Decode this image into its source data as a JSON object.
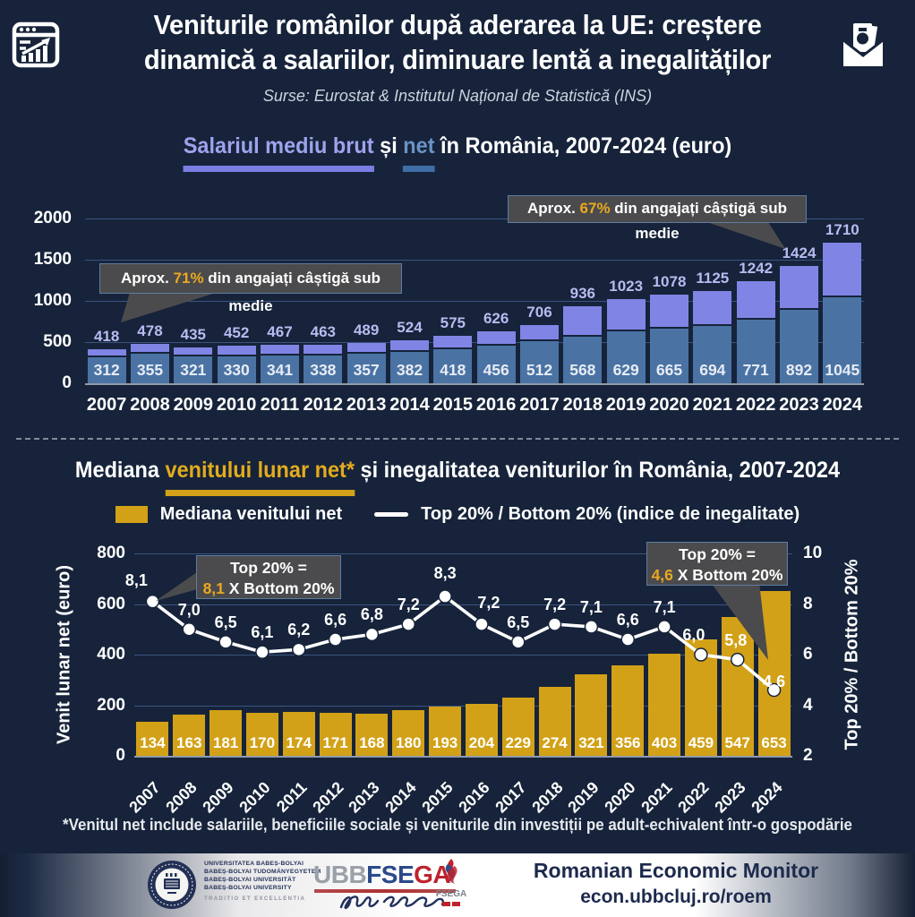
{
  "header": {
    "title_line1": "Veniturile românilor după aderarea la UE: creștere",
    "title_line2": "dinamică a salariilor, diminuare lentă a inegalităților",
    "subtitle": "Surse: Eurostat & Institutul Național de Statistică (INS)"
  },
  "section1": {
    "title_brut": "Salariul mediu brut",
    "title_si": " și ",
    "title_net": "net",
    "title_rest": " în România, 2007-2024 (euro)",
    "callout_left": {
      "prefix": "Aprox. ",
      "value": "71%",
      "suffix": " din angajați câștigă sub medie"
    },
    "callout_right": {
      "prefix": "Aprox. ",
      "value": "67%",
      "suffix": " din angajați câștigă sub medie"
    }
  },
  "section2": {
    "title_p1": "Mediana ",
    "title_gold": "venitului lunar net*",
    "title_p2": " și inegalitatea veniturilor în România, 2007-2024",
    "legend_bar": "Mediana venitului net",
    "legend_line": "Top 20% / Bottom 20% (indice de inegalitate)",
    "ylabel_left": "Venit lunar net (euro)",
    "ylabel_right": "Top 20% / Bottom 20%",
    "callout_left": {
      "line1": "Top 20% =",
      "value": "8,1",
      "rest": " X Bottom 20%"
    },
    "callout_right": {
      "line1": "Top 20% =",
      "value": "4,6",
      "rest": " X Bottom 20%"
    }
  },
  "footnote": "*Venitul net include salariile, beneficiile sociale și veniturile din investiții pe adult-echivalent într-o gospodărie",
  "footer": {
    "university_lines": [
      "UNIVERSITATEA BABEȘ-BOLYAI",
      "BABEȘ-BOLYAI TUDOMÁNYEGYETEM",
      "BABEȘ-BOLYAI UNIVERSITÄT",
      "BABEȘ-BOLYAI UNIVERSITY"
    ],
    "university_motto": "TRADITIO ET EXCELLENTIA",
    "logo_ubb": "UBB",
    "logo_fse": "FSE",
    "logo_ga": "GA",
    "emblem_text": "FSEGA",
    "brand_title": "Romanian Economic Monitor",
    "brand_url": "econ.ubbcluj.ro/roem"
  },
  "colors": {
    "background": "#16233a",
    "gross_bar": "#8084e4",
    "net_bar": "#4a73a4",
    "gold_bar": "#d2a117",
    "line": "#ffffff",
    "gold_accent": "#eaa821",
    "gridline": "#3a5480",
    "callout_bg": "#4b4b4d"
  },
  "chart_data": [
    {
      "type": "bar",
      "title": "Salariul mediu brut și net în România, 2007-2024 (euro)",
      "categories": [
        2007,
        2008,
        2009,
        2010,
        2011,
        2012,
        2013,
        2014,
        2015,
        2016,
        2017,
        2018,
        2019,
        2020,
        2021,
        2022,
        2023,
        2024
      ],
      "series": [
        {
          "name": "Salariul mediu brut",
          "color": "#8084e4",
          "values": [
            418,
            478,
            435,
            452,
            467,
            463,
            489,
            524,
            575,
            626,
            706,
            936,
            1023,
            1078,
            1125,
            1242,
            1424,
            1710
          ]
        },
        {
          "name": "Salariul mediu net",
          "color": "#4a73a4",
          "values": [
            312,
            355,
            321,
            330,
            341,
            338,
            357,
            382,
            418,
            456,
            512,
            568,
            629,
            665,
            694,
            771,
            892,
            1045
          ]
        }
      ],
      "ylim": [
        0,
        2000
      ],
      "yticks": [
        0,
        500,
        1000,
        1500,
        2000
      ],
      "grid": true,
      "annotations": [
        "Aprox. 71% din angajați câștigă sub medie",
        "Aprox. 67% din angajați câștigă sub medie"
      ]
    },
    {
      "type": "bar+line",
      "title": "Mediana venitului lunar net* și inegalitatea veniturilor în România, 2007-2024",
      "categories": [
        2007,
        2008,
        2009,
        2010,
        2011,
        2012,
        2013,
        2014,
        2015,
        2016,
        2017,
        2018,
        2019,
        2020,
        2021,
        2022,
        2023,
        2024
      ],
      "bar_series": {
        "name": "Mediana venitului net",
        "color": "#d2a117",
        "values": [
          134,
          163,
          181,
          170,
          174,
          171,
          168,
          180,
          193,
          204,
          229,
          274,
          321,
          356,
          403,
          459,
          547,
          653
        ]
      },
      "line_series": {
        "name": "Top 20% / Bottom 20% (indice de inegalitate)",
        "color": "#ffffff",
        "values": [
          8.1,
          7.0,
          6.5,
          6.1,
          6.2,
          6.6,
          6.8,
          7.2,
          8.3,
          7.2,
          6.5,
          7.2,
          7.1,
          6.6,
          7.1,
          6.0,
          5.8,
          4.6
        ]
      },
      "point_labels": [
        "8,1",
        "7,0",
        "6,5",
        "6,1",
        "6,2",
        "6,6",
        "6,8",
        "7,2",
        "8,3",
        "7,2",
        "6,5",
        "7,2",
        "7,1",
        "6,6",
        "7,1",
        "6,0",
        "5,8",
        "4,6"
      ],
      "ylabel_left": "Venit lunar net (euro)",
      "ylabel_right": "Top 20% / Bottom 20%",
      "ylim_left": [
        0,
        800
      ],
      "yticks_left": [
        0,
        200,
        400,
        600,
        800
      ],
      "ylim_right": [
        2,
        10
      ],
      "yticks_right": [
        2,
        4,
        6,
        8,
        10
      ],
      "grid": true,
      "legend_position": "top",
      "annotations": [
        "Top 20% = 8,1 X Bottom 20%",
        "Top 20% = 4,6 X Bottom 20%"
      ]
    }
  ]
}
